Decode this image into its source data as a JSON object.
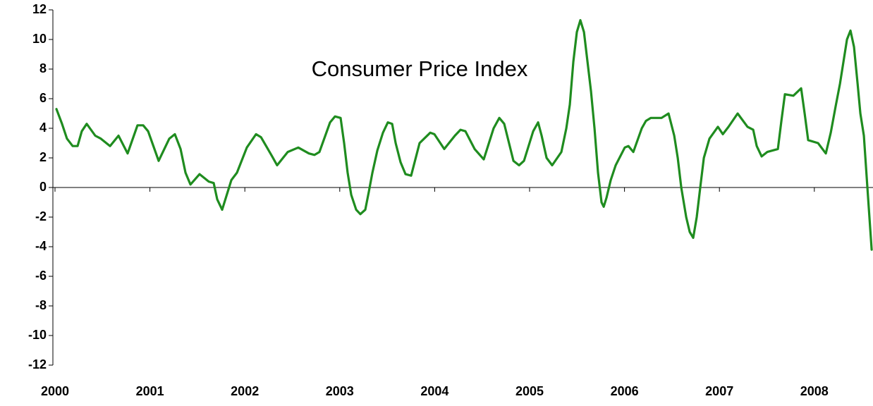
{
  "chart_data": {
    "type": "line",
    "title": "Consumer Price Index",
    "xlim": [
      2000,
      2008.6
    ],
    "xticks": [
      2000,
      2001,
      2002,
      2003,
      2004,
      2005,
      2006,
      2007,
      2008
    ],
    "ylim": [
      -12,
      12
    ],
    "yticks": [
      -12,
      -10,
      -8,
      -6,
      -4,
      -2,
      0,
      2,
      4,
      6,
      8,
      10,
      12
    ],
    "grid": false,
    "series": [
      {
        "name": "Consumer Price Index",
        "color": "#1f8c1f",
        "x": [
          2000.015,
          2000.074,
          2000.126,
          2000.186,
          2000.238,
          2000.282,
          2000.334,
          2000.424,
          2000.483,
          2000.58,
          2000.669,
          2000.765,
          2000.869,
          2000.929,
          2000.981,
          2001.092,
          2001.204,
          2001.263,
          2001.323,
          2001.375,
          2001.427,
          2001.523,
          2001.62,
          2001.672,
          2001.709,
          2001.761,
          2001.858,
          2001.917,
          2002.021,
          2002.118,
          2002.17,
          2002.288,
          2002.34,
          2002.452,
          2002.563,
          2002.675,
          2002.734,
          2002.786,
          2002.898,
          2002.95,
          2003.009,
          2003.046,
          2003.083,
          2003.121,
          2003.173,
          2003.217,
          2003.269,
          2003.306,
          2003.344,
          2003.396,
          2003.455,
          2003.507,
          2003.552,
          2003.589,
          2003.641,
          2003.693,
          2003.752,
          2003.841,
          2003.953,
          2003.997,
          2004.101,
          2004.213,
          2004.272,
          2004.324,
          2004.421,
          2004.517,
          2004.621,
          2004.681,
          2004.733,
          2004.83,
          2004.889,
          2004.941,
          2005.038,
          2005.09,
          2005.127,
          2005.179,
          2005.238,
          2005.335,
          2005.387,
          2005.424,
          2005.461,
          2005.498,
          2005.535,
          2005.573,
          2005.61,
          2005.647,
          2005.684,
          2005.721,
          2005.758,
          2005.781,
          2005.81,
          2005.855,
          2005.907,
          2006.003,
          2006.041,
          2006.093,
          2006.182,
          2006.226,
          2006.278,
          2006.39,
          2006.464,
          2006.524,
          2006.561,
          2006.598,
          2006.65,
          2006.687,
          2006.724,
          2006.761,
          2006.798,
          2006.836,
          2006.895,
          2006.984,
          2007.036,
          2007.096,
          2007.192,
          2007.296,
          2007.356,
          2007.393,
          2007.445,
          2007.504,
          2007.616,
          2007.653,
          2007.69,
          2007.779,
          2007.861,
          2007.898,
          2007.935,
          2008.039,
          2008.121,
          2008.173,
          2008.225,
          2008.27,
          2008.307,
          2008.344,
          2008.381,
          2008.418,
          2008.456,
          2008.485,
          2008.522,
          2008.559,
          2008.604
        ],
        "values": [
          5.3,
          4.3,
          3.3,
          2.8,
          2.8,
          3.8,
          4.3,
          3.5,
          3.3,
          2.8,
          3.5,
          2.3,
          4.2,
          4.2,
          3.8,
          1.8,
          3.3,
          3.6,
          2.6,
          1.0,
          0.2,
          0.9,
          0.4,
          0.3,
          -0.8,
          -1.5,
          0.5,
          1.0,
          2.7,
          3.6,
          3.4,
          2.1,
          1.5,
          2.4,
          2.7,
          2.3,
          2.2,
          2.4,
          4.4,
          4.8,
          4.7,
          3.0,
          1.0,
          -0.5,
          -1.5,
          -1.8,
          -1.5,
          -0.3,
          1.0,
          2.5,
          3.7,
          4.4,
          4.3,
          3.0,
          1.7,
          0.9,
          0.8,
          3.0,
          3.7,
          3.6,
          2.6,
          3.5,
          3.9,
          3.8,
          2.6,
          1.9,
          4.0,
          4.7,
          4.3,
          1.8,
          1.5,
          1.8,
          3.8,
          4.4,
          3.5,
          2.0,
          1.5,
          2.4,
          4.0,
          5.6,
          8.5,
          10.5,
          11.3,
          10.5,
          8.5,
          6.5,
          4.0,
          1.0,
          -1.0,
          -1.3,
          -0.7,
          0.5,
          1.5,
          2.7,
          2.8,
          2.4,
          4.0,
          4.5,
          4.7,
          4.7,
          5.0,
          3.5,
          2.0,
          0.0,
          -2.0,
          -3.0,
          -3.4,
          -2.0,
          0.0,
          2.0,
          3.3,
          4.1,
          3.6,
          4.1,
          5.0,
          4.1,
          3.9,
          2.8,
          2.1,
          2.4,
          2.6,
          4.5,
          6.3,
          6.2,
          6.7,
          5.0,
          3.2,
          3.0,
          2.3,
          3.7,
          5.5,
          7.0,
          8.5,
          10.0,
          10.6,
          9.5,
          7.0,
          5.0,
          3.5,
          0.0,
          -4.2
        ]
      }
    ]
  }
}
